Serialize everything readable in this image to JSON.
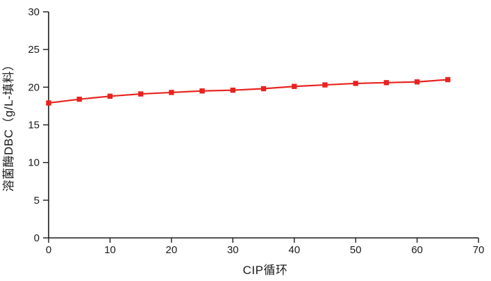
{
  "figure": {
    "background": "#ffffff"
  },
  "chart_data": {
    "type": "line",
    "title": "",
    "xlabel": "CIP循环",
    "ylabel": "溶菌酶DBC（g/L-填料）",
    "x": [
      0,
      5,
      10,
      15,
      20,
      25,
      30,
      35,
      40,
      45,
      50,
      55,
      60,
      65
    ],
    "series": [
      {
        "name": "lysozyme-dbc",
        "values": [
          17.9,
          18.4,
          18.8,
          19.1,
          19.3,
          19.5,
          19.6,
          19.8,
          20.1,
          20.3,
          20.5,
          20.6,
          20.7,
          21.0
        ],
        "color": "#e8231f",
        "marker": "square",
        "marker_size": 7.4,
        "line_width": 2.2
      }
    ],
    "xlim": [
      0,
      70
    ],
    "ylim": [
      0,
      30
    ],
    "x_ticks": [
      0,
      10,
      20,
      30,
      40,
      50,
      60,
      70
    ],
    "y_ticks": [
      0,
      5,
      10,
      15,
      20,
      25,
      30
    ],
    "grid": false,
    "legend": "none",
    "axis_color": "#1a1a1a",
    "tick_label_color": "#1a1a1a"
  }
}
